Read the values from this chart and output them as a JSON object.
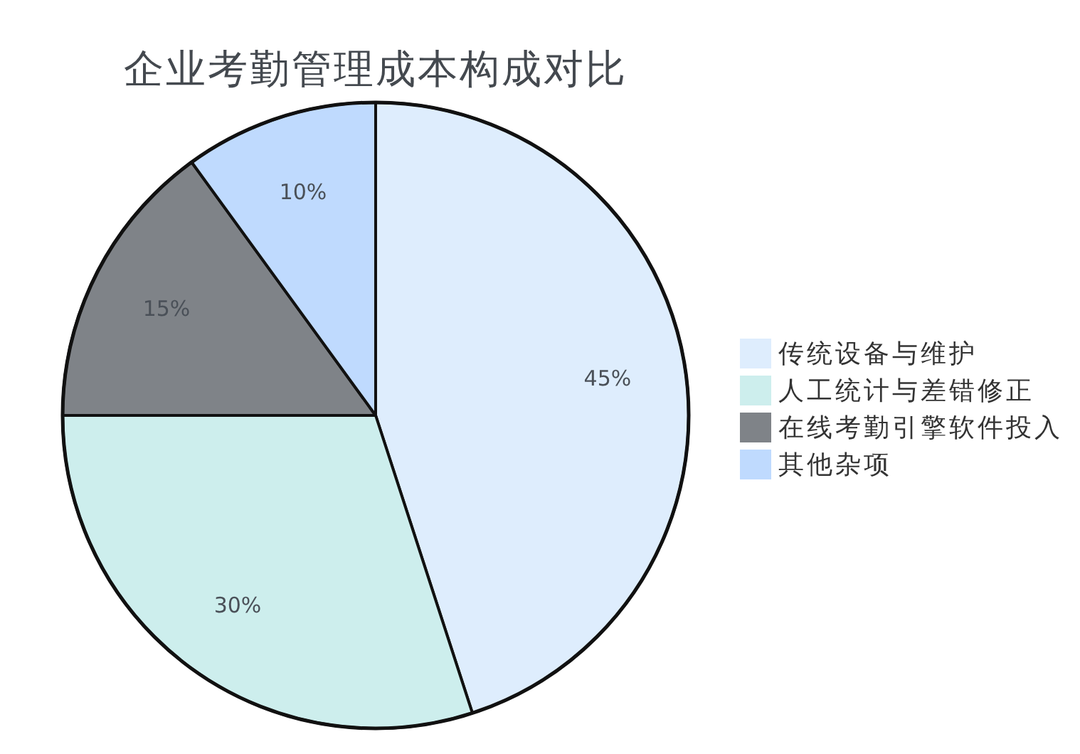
{
  "chart_data": {
    "type": "pie",
    "title": "企业考勤管理成本构成对比",
    "categories": [
      "传统设备与维护",
      "人工统计与差错修正",
      "在线考勤引擎软件投入",
      "其他杂项"
    ],
    "values": [
      45,
      30,
      15,
      10
    ],
    "value_labels": [
      "45%",
      "30%",
      "15%",
      "10%"
    ],
    "colors": [
      "#deedfd",
      "#cdeeed",
      "#7f8388",
      "#bfdafe"
    ],
    "legend": "right"
  }
}
